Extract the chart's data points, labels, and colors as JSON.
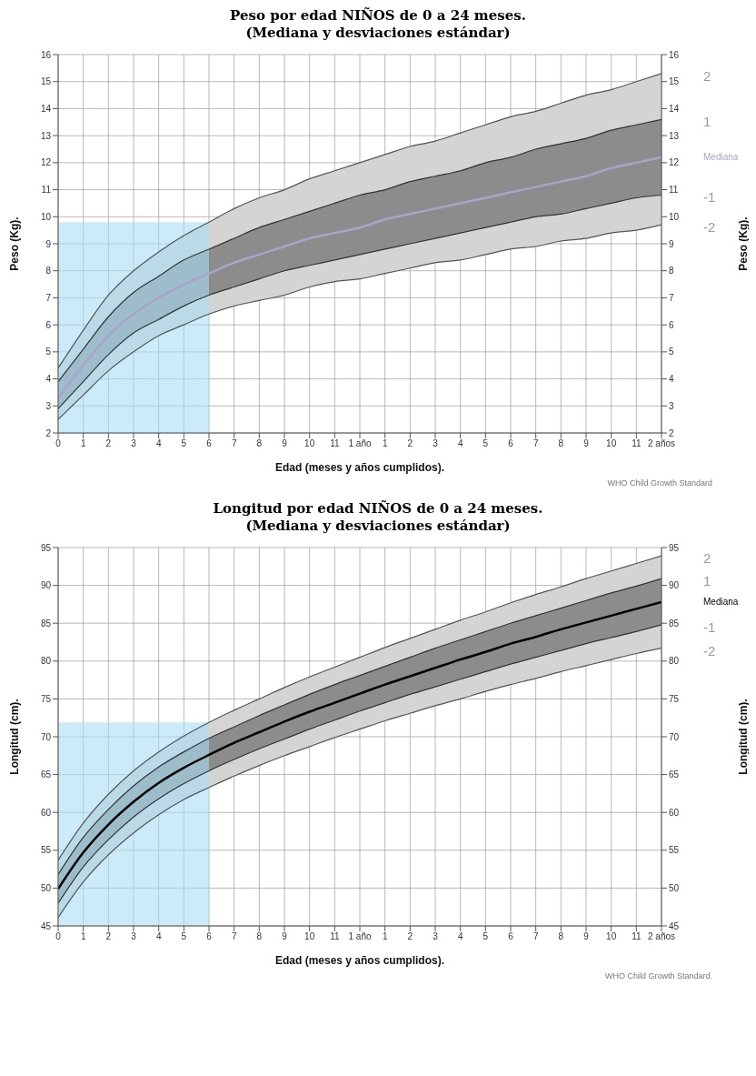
{
  "chart_data": [
    {
      "type": "line",
      "title": "Peso por edad NIÑOS de 0 a 24 meses.",
      "subtitle": "(Mediana y desviaciones estándar)",
      "xlabel": "Edad (meses y años cumplidos).",
      "ylabel": "Peso (Kg).",
      "y2label": "Peso (Kg).",
      "categories": [
        "0",
        "1",
        "2",
        "3",
        "4",
        "5",
        "6",
        "7",
        "8",
        "9",
        "10",
        "11",
        "1 año",
        "1",
        "2",
        "3",
        "4",
        "5",
        "6",
        "7",
        "8",
        "9",
        "10",
        "11",
        "2 años"
      ],
      "series": [
        {
          "name": "2",
          "color": "#555555",
          "values": [
            4.4,
            5.8,
            7.1,
            8.0,
            8.7,
            9.3,
            9.8,
            10.3,
            10.7,
            11.0,
            11.4,
            11.7,
            12.0,
            12.3,
            12.6,
            12.8,
            13.1,
            13.4,
            13.7,
            13.9,
            14.2,
            14.5,
            14.7,
            15.0,
            15.3
          ],
          "lower": [
            2.5,
            3.4,
            4.3,
            5.0,
            5.6,
            6.0,
            6.4,
            6.7,
            6.9,
            7.1,
            7.4,
            7.6,
            7.7,
            7.9,
            8.1,
            8.3,
            8.4,
            8.6,
            8.8,
            8.9,
            9.1,
            9.2,
            9.4,
            9.5,
            9.7
          ],
          "upper": [
            4.4,
            5.8,
            7.1,
            8.0,
            8.7,
            9.3,
            9.8,
            10.3,
            10.7,
            11.0,
            11.4,
            11.7,
            12.0,
            12.3,
            12.6,
            12.8,
            13.1,
            13.4,
            13.7,
            13.9,
            14.2,
            14.5,
            14.7,
            15.0,
            15.3
          ]
        },
        {
          "name": "1",
          "color": "#333333",
          "values": [
            3.9,
            5.1,
            6.3,
            7.2,
            7.8,
            8.4,
            8.8,
            9.2,
            9.6,
            9.9,
            10.2,
            10.5,
            10.8,
            11.0,
            11.3,
            11.5,
            11.7,
            12.0,
            12.2,
            12.5,
            12.7,
            12.9,
            13.2,
            13.4,
            13.6
          ]
        },
        {
          "name": "Mediana",
          "color": "#a9a3c9",
          "values": [
            3.3,
            4.5,
            5.6,
            6.4,
            7.0,
            7.5,
            7.9,
            8.3,
            8.6,
            8.9,
            9.2,
            9.4,
            9.6,
            9.9,
            10.1,
            10.3,
            10.5,
            10.7,
            10.9,
            11.1,
            11.3,
            11.5,
            11.8,
            12.0,
            12.2
          ],
          "lower": [
            2.9,
            3.9,
            4.9,
            5.7,
            6.2,
            6.7,
            7.1,
            7.4,
            7.7,
            8.0,
            8.2,
            8.4,
            8.6,
            8.8,
            9.0,
            9.2,
            9.4,
            9.6,
            9.8,
            10.0,
            10.1,
            10.3,
            10.5,
            10.7,
            10.8
          ],
          "upper": [
            3.9,
            5.1,
            6.3,
            7.2,
            7.8,
            8.4,
            8.8,
            9.2,
            9.6,
            9.9,
            10.2,
            10.5,
            10.8,
            11.0,
            11.3,
            11.5,
            11.7,
            12.0,
            12.2,
            12.5,
            12.7,
            12.9,
            13.2,
            13.4,
            13.6
          ]
        },
        {
          "name": "-1",
          "color": "#333333",
          "values": [
            2.9,
            3.9,
            4.9,
            5.7,
            6.2,
            6.7,
            7.1,
            7.4,
            7.7,
            8.0,
            8.2,
            8.4,
            8.6,
            8.8,
            9.0,
            9.2,
            9.4,
            9.6,
            9.8,
            10.0,
            10.1,
            10.3,
            10.5,
            10.7,
            10.8
          ]
        },
        {
          "name": "-2",
          "color": "#555555",
          "values": [
            2.5,
            3.4,
            4.3,
            5.0,
            5.6,
            6.0,
            6.4,
            6.7,
            6.9,
            7.1,
            7.4,
            7.6,
            7.7,
            7.9,
            8.1,
            8.3,
            8.4,
            8.6,
            8.8,
            8.9,
            9.1,
            9.2,
            9.4,
            9.5,
            9.7
          ]
        }
      ],
      "ylim": [
        2,
        16
      ],
      "yticks": [
        2,
        3,
        4,
        5,
        6,
        7,
        8,
        9,
        10,
        11,
        12,
        13,
        14,
        15,
        16
      ],
      "y2lim": [
        2,
        16
      ],
      "y2ticks": [
        2,
        3,
        4,
        5,
        6,
        7,
        8,
        9,
        10,
        11,
        12,
        13,
        14,
        15,
        16
      ],
      "bands": [
        {
          "axis": "x",
          "from": "0",
          "to": "6",
          "color": "#a9def5"
        }
      ],
      "grid": true,
      "annotations": [
        "WHO Child Growth Standard"
      ]
    },
    {
      "type": "line",
      "title": "Longitud por edad NIÑOS de 0 a 24 meses.",
      "subtitle": "(Mediana y desviaciones estándar)",
      "xlabel": "Edad (meses y años cumplidos).",
      "ylabel": "Longitud (cm).",
      "y2label": "Longitud (cm).",
      "categories": [
        "0",
        "1",
        "2",
        "3",
        "4",
        "5",
        "6",
        "7",
        "8",
        "9",
        "10",
        "11",
        "1 año",
        "1",
        "2",
        "3",
        "4",
        "5",
        "6",
        "7",
        "8",
        "9",
        "10",
        "11",
        "2 años"
      ],
      "series": [
        {
          "name": "2",
          "color": "#555555",
          "values": [
            53.7,
            58.6,
            62.4,
            65.5,
            68.0,
            70.1,
            71.9,
            73.5,
            75.0,
            76.5,
            77.9,
            79.2,
            80.5,
            81.8,
            83.0,
            84.2,
            85.4,
            86.5,
            87.7,
            88.8,
            89.8,
            90.9,
            91.9,
            92.9,
            93.9
          ],
          "lower": [
            46.1,
            50.8,
            54.4,
            57.3,
            59.7,
            61.7,
            63.3,
            64.8,
            66.2,
            67.5,
            68.7,
            69.9,
            71.0,
            72.1,
            73.1,
            74.1,
            75.0,
            76.0,
            76.9,
            77.7,
            78.6,
            79.4,
            80.2,
            81.0,
            81.7
          ],
          "upper": [
            53.7,
            58.6,
            62.4,
            65.5,
            68.0,
            70.1,
            71.9,
            73.5,
            75.0,
            76.5,
            77.9,
            79.2,
            80.5,
            81.8,
            83.0,
            84.2,
            85.4,
            86.5,
            87.7,
            88.8,
            89.8,
            90.9,
            91.9,
            92.9,
            93.9
          ]
        },
        {
          "name": "1",
          "color": "#333333",
          "values": [
            51.8,
            56.7,
            60.4,
            63.5,
            66.0,
            68.0,
            69.8,
            71.3,
            72.8,
            74.2,
            75.6,
            76.9,
            78.1,
            79.3,
            80.5,
            81.7,
            82.8,
            83.9,
            85.0,
            86.0,
            87.0,
            88.0,
            89.0,
            89.9,
            90.9
          ]
        },
        {
          "name": "Mediana",
          "color": "#000000",
          "values": [
            49.9,
            54.7,
            58.4,
            61.4,
            63.9,
            65.9,
            67.6,
            69.2,
            70.6,
            72.0,
            73.3,
            74.5,
            75.7,
            76.9,
            78.0,
            79.1,
            80.2,
            81.2,
            82.3,
            83.2,
            84.2,
            85.1,
            86.0,
            86.9,
            87.8
          ],
          "lower": [
            48.0,
            52.8,
            56.4,
            59.4,
            61.8,
            63.8,
            65.5,
            67.0,
            68.4,
            69.7,
            71.0,
            72.2,
            73.4,
            74.5,
            75.6,
            76.6,
            77.6,
            78.6,
            79.6,
            80.5,
            81.4,
            82.3,
            83.1,
            83.9,
            84.8
          ],
          "upper": [
            51.8,
            56.7,
            60.4,
            63.5,
            66.0,
            68.0,
            69.8,
            71.3,
            72.8,
            74.2,
            75.6,
            76.9,
            78.1,
            79.3,
            80.5,
            81.7,
            82.8,
            83.9,
            85.0,
            86.0,
            87.0,
            88.0,
            89.0,
            89.9,
            90.9
          ]
        },
        {
          "name": "-1",
          "color": "#333333",
          "values": [
            48.0,
            52.8,
            56.4,
            59.4,
            61.8,
            63.8,
            65.5,
            67.0,
            68.4,
            69.7,
            71.0,
            72.2,
            73.4,
            74.5,
            75.6,
            76.6,
            77.6,
            78.6,
            79.6,
            80.5,
            81.4,
            82.3,
            83.1,
            83.9,
            84.8
          ]
        },
        {
          "name": "-2",
          "color": "#555555",
          "values": [
            46.1,
            50.8,
            54.4,
            57.3,
            59.7,
            61.7,
            63.3,
            64.8,
            66.2,
            67.5,
            68.7,
            69.9,
            71.0,
            72.1,
            73.1,
            74.1,
            75.0,
            76.0,
            76.9,
            77.7,
            78.6,
            79.4,
            80.2,
            81.0,
            81.7
          ]
        }
      ],
      "ylim": [
        45,
        95
      ],
      "yticks": [
        45,
        50,
        55,
        60,
        65,
        70,
        75,
        80,
        85,
        90,
        95
      ],
      "y2lim": [
        45,
        95
      ],
      "y2ticks": [
        45,
        50,
        55,
        60,
        65,
        70,
        75,
        80,
        85,
        90,
        95
      ],
      "bands": [
        {
          "axis": "x",
          "from": "0",
          "to": "6",
          "color": "#a9def5"
        }
      ],
      "grid": true,
      "annotations": [
        "WHO Child Growth Standard."
      ]
    }
  ]
}
